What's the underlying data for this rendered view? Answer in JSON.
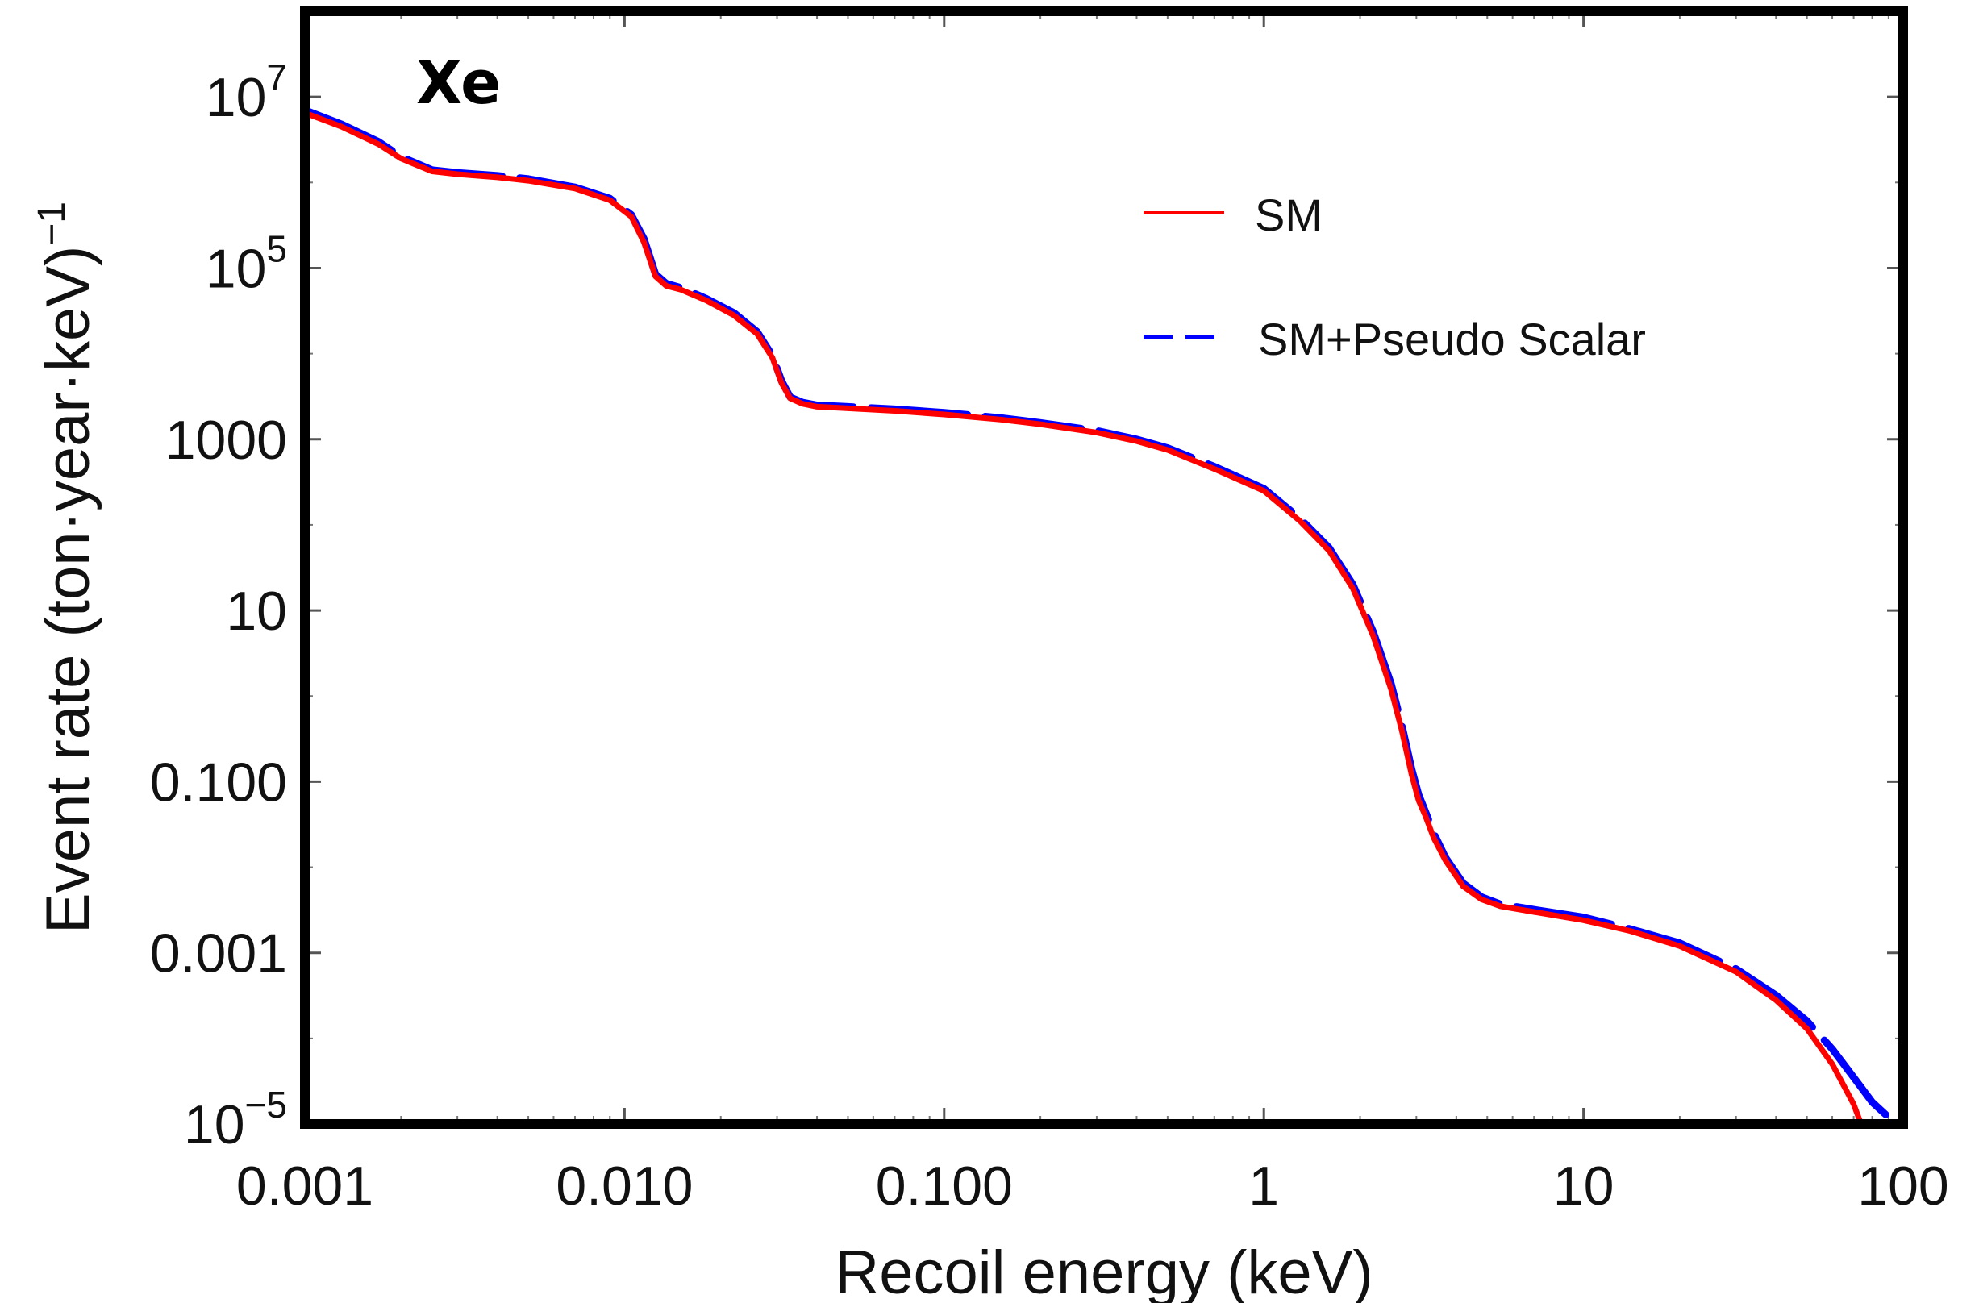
{
  "chart_data": {
    "type": "line",
    "title": "",
    "xlabel": "Recoil  energy  (keV)",
    "ylabel": "Event  rate  (ton·year·keV)",
    "ylabel_superscript": "−1",
    "x_scale": "log",
    "y_scale": "log",
    "xlim": [
      0.001,
      100
    ],
    "ylim": [
      1e-05,
      100000000
    ],
    "panel_label": "Xe",
    "panel_label_color": "#5f8aa8",
    "x_ticks": [
      {
        "value": 0.001,
        "label": "0.001"
      },
      {
        "value": 0.01,
        "label": "0.010"
      },
      {
        "value": 0.1,
        "label": "0.100"
      },
      {
        "value": 1,
        "label": "1"
      },
      {
        "value": 10,
        "label": "10"
      },
      {
        "value": 100,
        "label": "100"
      }
    ],
    "y_ticks": [
      {
        "value": 1e-05,
        "label": "10",
        "exp": "−5"
      },
      {
        "value": 0.001,
        "label": "0.001",
        "exp": ""
      },
      {
        "value": 0.1,
        "label": "0.100",
        "exp": ""
      },
      {
        "value": 10,
        "label": "10",
        "exp": ""
      },
      {
        "value": 1000,
        "label": "1000",
        "exp": ""
      },
      {
        "value": 100000,
        "label": "10",
        "exp": "5"
      },
      {
        "value": 10000000,
        "label": "10",
        "exp": "7"
      }
    ],
    "grid": false,
    "legend_position": "top-right",
    "series": [
      {
        "name": "SM",
        "color": "#ff0000",
        "style": "solid",
        "points": [
          [
            0.001,
            6500000
          ],
          [
            0.0013,
            4500000
          ],
          [
            0.0017,
            2800000
          ],
          [
            0.002,
            1900000
          ],
          [
            0.0025,
            1350000
          ],
          [
            0.003,
            1250000
          ],
          [
            0.004,
            1150000
          ],
          [
            0.005,
            1050000
          ],
          [
            0.007,
            850000
          ],
          [
            0.009,
            620000
          ],
          [
            0.0105,
            400000
          ],
          [
            0.0115,
            200000
          ],
          [
            0.0125,
            80000
          ],
          [
            0.0135,
            62000
          ],
          [
            0.015,
            56000
          ],
          [
            0.018,
            42000
          ],
          [
            0.022,
            28000
          ],
          [
            0.026,
            17000
          ],
          [
            0.029,
            9000
          ],
          [
            0.031,
            4500
          ],
          [
            0.033,
            3000
          ],
          [
            0.036,
            2600
          ],
          [
            0.04,
            2400
          ],
          [
            0.05,
            2300
          ],
          [
            0.07,
            2150
          ],
          [
            0.1,
            1950
          ],
          [
            0.15,
            1700
          ],
          [
            0.2,
            1500
          ],
          [
            0.3,
            1200
          ],
          [
            0.4,
            950
          ],
          [
            0.5,
            750
          ],
          [
            0.7,
            450
          ],
          [
            1.0,
            250
          ],
          [
            1.3,
            110
          ],
          [
            1.6,
            50
          ],
          [
            1.9,
            18
          ],
          [
            2.2,
            5
          ],
          [
            2.5,
            1.2
          ],
          [
            2.7,
            0.4
          ],
          [
            2.9,
            0.12
          ],
          [
            3.05,
            0.06
          ],
          [
            3.2,
            0.04
          ],
          [
            3.4,
            0.022
          ],
          [
            3.7,
            0.012
          ],
          [
            4.2,
            0.006
          ],
          [
            4.8,
            0.0042
          ],
          [
            5.5,
            0.0035
          ],
          [
            7.0,
            0.003
          ],
          [
            10,
            0.0024
          ],
          [
            14,
            0.0018
          ],
          [
            20,
            0.0012
          ],
          [
            30,
            0.0006
          ],
          [
            40,
            0.00028
          ],
          [
            50,
            0.00013
          ],
          [
            60,
            5e-05
          ],
          [
            70,
            1.7e-05
          ],
          [
            75,
            8.5e-06
          ]
        ]
      },
      {
        "name": "SM+Pseudo Scalar",
        "color": "#0000ff",
        "style": "dashed",
        "points": [
          [
            0.001,
            7000000
          ],
          [
            0.0013,
            4800000
          ],
          [
            0.0017,
            3000000
          ],
          [
            0.002,
            2000000
          ],
          [
            0.0025,
            1400000
          ],
          [
            0.003,
            1300000
          ],
          [
            0.004,
            1200000
          ],
          [
            0.005,
            1100000
          ],
          [
            0.007,
            880000
          ],
          [
            0.009,
            650000
          ],
          [
            0.0105,
            420000
          ],
          [
            0.0115,
            220000
          ],
          [
            0.0125,
            85000
          ],
          [
            0.0135,
            66000
          ],
          [
            0.015,
            59000
          ],
          [
            0.018,
            44000
          ],
          [
            0.022,
            30000
          ],
          [
            0.026,
            18000
          ],
          [
            0.029,
            9500
          ],
          [
            0.031,
            4800
          ],
          [
            0.033,
            3100
          ],
          [
            0.036,
            2700
          ],
          [
            0.04,
            2500
          ],
          [
            0.05,
            2400
          ],
          [
            0.07,
            2250
          ],
          [
            0.1,
            2050
          ],
          [
            0.15,
            1780
          ],
          [
            0.2,
            1560
          ],
          [
            0.3,
            1260
          ],
          [
            0.4,
            1000
          ],
          [
            0.5,
            790
          ],
          [
            0.7,
            480
          ],
          [
            1.0,
            265
          ],
          [
            1.3,
            118
          ],
          [
            1.6,
            54
          ],
          [
            1.9,
            20
          ],
          [
            2.2,
            5.6
          ],
          [
            2.5,
            1.4
          ],
          [
            2.7,
            0.46
          ],
          [
            2.9,
            0.14
          ],
          [
            3.05,
            0.07
          ],
          [
            3.2,
            0.045
          ],
          [
            3.4,
            0.025
          ],
          [
            3.7,
            0.013
          ],
          [
            4.2,
            0.0065
          ],
          [
            4.8,
            0.0045
          ],
          [
            5.5,
            0.0037
          ],
          [
            7.0,
            0.0032
          ],
          [
            10,
            0.0026
          ],
          [
            14,
            0.0019
          ],
          [
            20,
            0.0013
          ],
          [
            30,
            0.00065
          ],
          [
            40,
            0.00032
          ],
          [
            50,
            0.00016
          ],
          [
            60,
            7.5e-05
          ],
          [
            70,
            3.5e-05
          ],
          [
            80,
            1.8e-05
          ],
          [
            90,
            1.2e-05
          ]
        ]
      }
    ]
  }
}
